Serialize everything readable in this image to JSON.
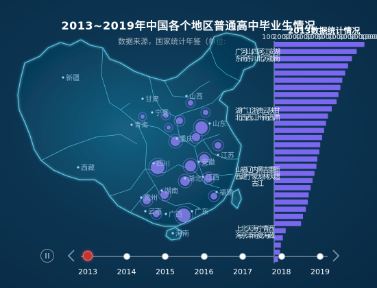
{
  "title": "2013~2019年中国各个地区普通高中毕业生情况",
  "subtitle": "数据来源，国家统计年鉴（单位:",
  "bar_chart_title": "2013数据统计情况",
  "colors": {
    "bar": "#7b68ee",
    "bubble": "#8b7cf0",
    "map_line": "#5fd3f0",
    "active_node": "#c23531"
  },
  "map_labels": [
    {
      "name": "新疆"
    },
    {
      "name": "西藏"
    },
    {
      "name": "青海"
    },
    {
      "name": "宁夏"
    },
    {
      "name": "甘肃"
    },
    {
      "name": "四川"
    },
    {
      "name": "重庆"
    },
    {
      "name": "山西"
    },
    {
      "name": "山东"
    },
    {
      "name": "江苏"
    },
    {
      "name": "安徽"
    },
    {
      "name": "湖北"
    },
    {
      "name": "湖南"
    },
    {
      "name": "江西"
    },
    {
      "name": "福建"
    },
    {
      "name": "贵州"
    },
    {
      "name": "云南"
    },
    {
      "name": "广西"
    },
    {
      "name": "广东"
    },
    {
      "name": "海南"
    }
  ],
  "chart_data": {
    "type": "bar",
    "orientation": "horizontal",
    "year": "2013",
    "x_tick_labels": [
      "100,000",
      "200,000",
      "300,000",
      "400,000",
      "500,000",
      "600,000",
      "700,000",
      "800,000",
      "900,000",
      "1,000,000"
    ],
    "categories": [
      "广东",
      "河南",
      "山东",
      "四川",
      "河北",
      "江苏",
      "安徽",
      "湖南",
      "湖北",
      "广西",
      "江西",
      "浙江",
      "贵州",
      "云南",
      "陕西",
      "甘肃",
      "山西",
      "福建",
      "辽宁",
      "内蒙古",
      "黑龙江",
      "吉林",
      "重庆",
      "新疆",
      "上海",
      "北京",
      "天津",
      "海南",
      "宁夏",
      "青海",
      "西藏"
    ],
    "values": [
      940000,
      860000,
      810000,
      770000,
      740000,
      710000,
      690000,
      670000,
      650000,
      600000,
      560000,
      540000,
      520000,
      500000,
      480000,
      470000,
      450000,
      440000,
      420000,
      400000,
      380000,
      360000,
      350000,
      330000,
      300000,
      280000,
      120000,
      90000,
      70000,
      60000,
      40000
    ],
    "xlim": [
      0,
      1000000
    ]
  },
  "timeline": {
    "years": [
      "2013",
      "2014",
      "2015",
      "2016",
      "2017",
      "2018",
      "2019"
    ],
    "current": "2013"
  }
}
